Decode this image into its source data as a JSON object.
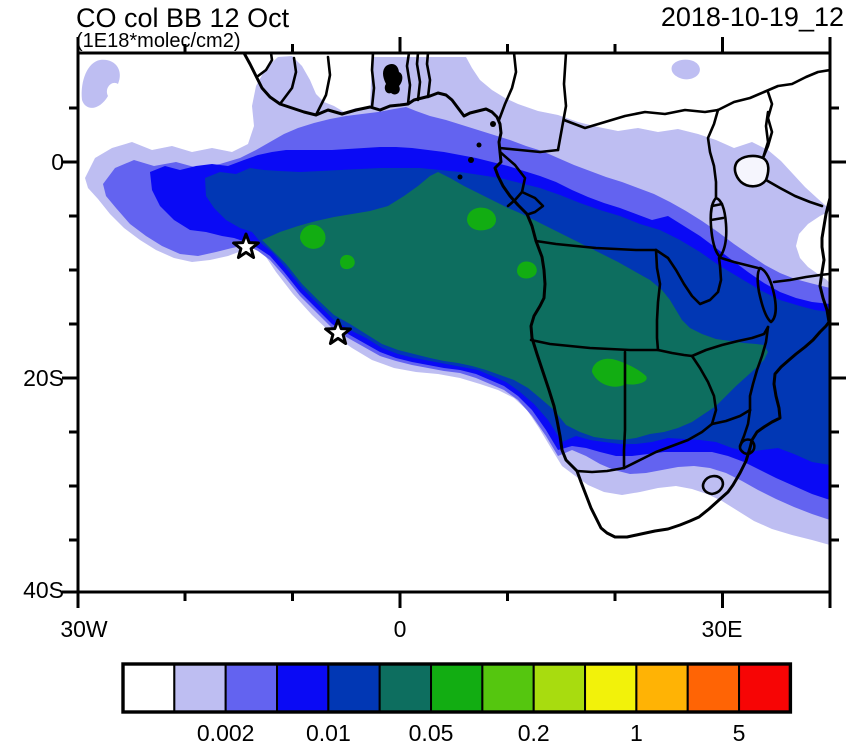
{
  "header": {
    "title": "CO col BB 12 Oct",
    "subtitle": "(1E18*molec/cm2)",
    "date_label": "2018-10-19_12"
  },
  "chart_data": {
    "type": "heatmap",
    "subtype": "filled-contour-map",
    "title": "CO col BB 12 Oct",
    "units_label": "(1E18*molec/cm2)",
    "timestamp_label": "2018-10-19_12",
    "variable": "CO column from biomass burning",
    "region": "Africa and the South Atlantic",
    "x_axis": {
      "tick_labels": [
        "30W",
        "0",
        "30E"
      ],
      "tick_values_deg_east": [
        -30,
        0,
        30
      ],
      "range_deg_east": [
        -30.3,
        40.3
      ],
      "minor_tick_step_deg": 10,
      "grid": false
    },
    "y_axis": {
      "tick_labels": [
        "0",
        "20S",
        "40S"
      ],
      "tick_values_deg_north": [
        0,
        -20,
        -40
      ],
      "range_deg_north": [
        10.1,
        -40
      ],
      "minor_tick_step_deg": 5,
      "grid": false
    },
    "colorbar": {
      "colors": [
        "#FFFFFF",
        "#BEBEF2",
        "#6363F0",
        "#0A0AF5",
        "#0137B4",
        "#0D6E5F",
        "#12AD12",
        "#55C60F",
        "#A8DC0F",
        "#F2F20A",
        "#FFB305",
        "#FF6405",
        "#F70505"
      ],
      "boundary_values": [
        0.001,
        0.002,
        0.005,
        0.01,
        0.02,
        0.05,
        0.1,
        0.2,
        0.5,
        1,
        2,
        5
      ],
      "labeled_values": [
        "0.002",
        "0.01",
        "0.05",
        "0.2",
        "1",
        "5"
      ],
      "labeled_boundary_indices": [
        2,
        4,
        6,
        8,
        10,
        12
      ],
      "orientation": "horizontal",
      "position": "bottom"
    },
    "markers": [
      {
        "type": "open-star",
        "lon_deg_east": -14.4,
        "lat_deg_north": -7.9
      },
      {
        "type": "open-star",
        "lon_deg_east": -5.8,
        "lat_deg_north": -15.9
      }
    ],
    "legend_position": "bottom",
    "description": "Smoke-plume CO column: teal core (0.05-0.1) over Angola/Zambia/Botswana extending west over the Atlantic; nested blue and lavender bands spread north to the Gulf of Guinea coast, east over Tanzania/Mozambique and south over South Africa; bright green patches mark local maxima (0.1-0.2)."
  }
}
